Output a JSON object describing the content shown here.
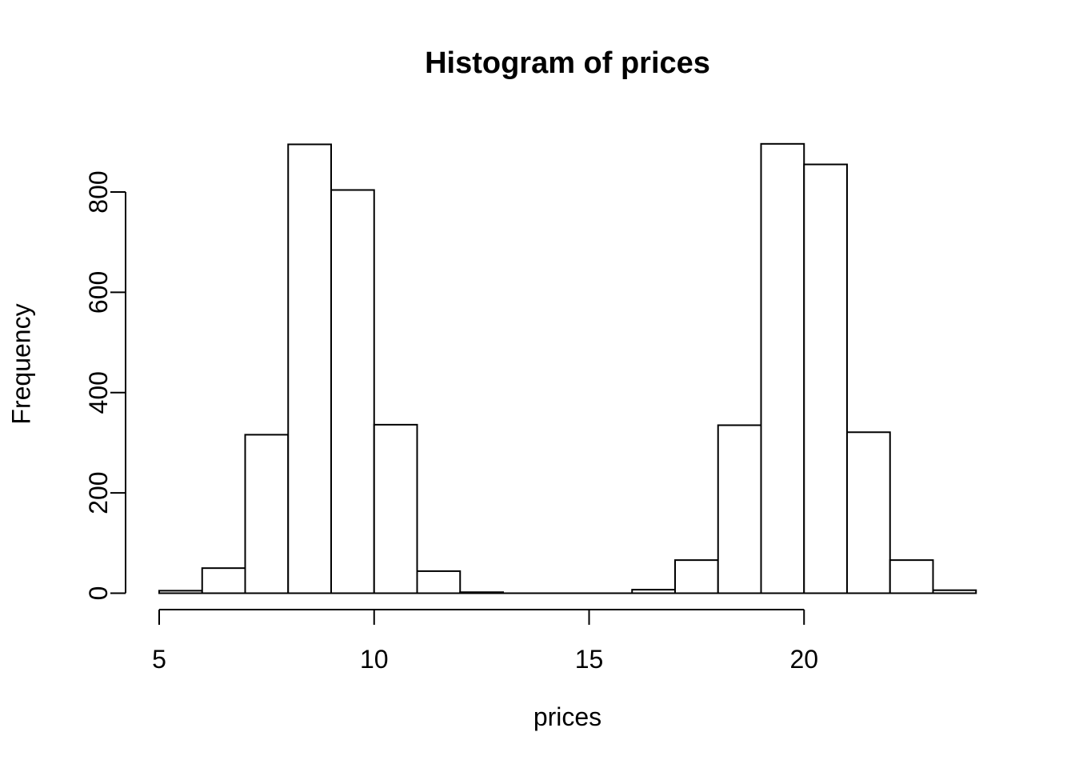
{
  "figure": {
    "title": "Histogram of prices",
    "xlabel": "prices",
    "ylabel": "Frequency"
  },
  "chart_data": {
    "type": "bar",
    "subtype": "histogram",
    "title": "Histogram of prices",
    "xlabel": "prices",
    "ylabel": "Frequency",
    "bin_width": 1,
    "bin_edges": [
      5,
      6,
      7,
      8,
      9,
      10,
      11,
      12,
      13,
      14,
      15,
      16,
      17,
      18,
      19,
      20,
      21,
      22,
      23,
      24
    ],
    "counts": [
      5,
      50,
      316,
      895,
      804,
      336,
      44,
      2,
      0,
      0,
      0,
      7,
      66,
      335,
      896,
      855,
      321,
      66,
      6
    ],
    "x_ticks": [
      5,
      10,
      15,
      20
    ],
    "y_ticks": [
      0,
      200,
      400,
      600,
      800
    ],
    "xlim": [
      5,
      24
    ],
    "ylim": [
      0,
      900
    ],
    "grid": false,
    "legend_position": "none",
    "colors": {
      "bar_fill": "#ffffff",
      "stroke": "#000000",
      "background": "#ffffff",
      "text": "#000000"
    }
  }
}
